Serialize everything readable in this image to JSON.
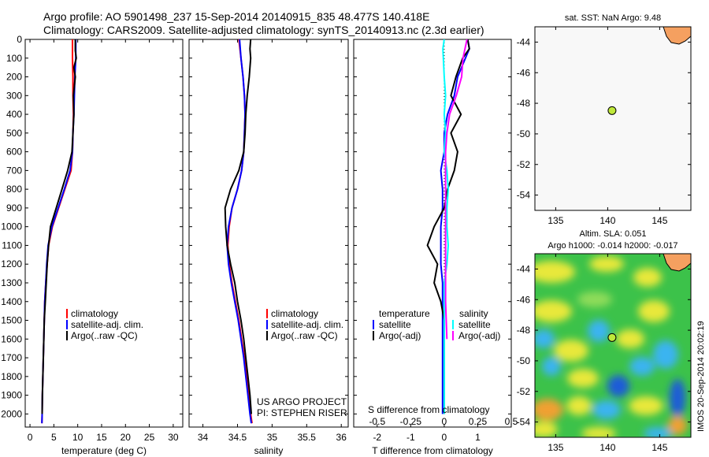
{
  "title": {
    "line1": "Argo profile: AO 5901498_237 15-Sep-2014 20140915_835 48.477S 140.418E",
    "line2": "Climatology: CARS2009. Satellite-adjusted climatology: synTS_20140913.nc (2.3d earlier)"
  },
  "panels": {
    "temperature": {
      "xlabel": "temperature (deg C)",
      "legend": [
        "climatology",
        "satellite-adj. clim.",
        "Argo(..raw -QC)"
      ]
    },
    "salinity": {
      "xlabel": "salinity",
      "legend": [
        "climatology",
        "satellite-adj. clim.",
        "Argo(..raw -QC)"
      ],
      "project_line1": "US ARGO PROJECT",
      "project_line2": "PI: STEPHEN RISER"
    },
    "difference": {
      "xlabel": "T difference from climatology",
      "top_axis_label": "S difference from climatology",
      "legend_temperature_title": "temperature",
      "legend_salinity_title": "salinity",
      "legend_temperature": [
        "satellite",
        "Argo(-adj)"
      ],
      "legend_salinity": [
        "satellite",
        "Argo(-adj)"
      ]
    },
    "sst_map": {
      "title": "sat. SST: NaN Argo: 9.48"
    },
    "sla_map": {
      "title1": "Altim. SLA: 0.051",
      "title2": "Argo h1000: -0.014 h2000: -0.017",
      "watermark": "IMOS 20-Sep-2014 20:02:19"
    }
  },
  "colors": {
    "climatology": "#ff0000",
    "satellite": "#0000ff",
    "argo": "#000000",
    "sal_satellite": "#00ffff",
    "sal_argo": "#ff00ff",
    "argo_marker": "#bfe83a",
    "land": "#f5a060",
    "map_background": "#f8f8f8"
  },
  "chart_data": [
    {
      "type": "line",
      "panel": "temperature",
      "xlabel": "temperature (deg C)",
      "ylabel": "",
      "xlim": [
        -1,
        32
      ],
      "ylim": [
        2070,
        0
      ],
      "y_inverted": true,
      "xticks": [
        0,
        5,
        10,
        15,
        20,
        25,
        30
      ],
      "yticks": [
        0,
        100,
        200,
        300,
        400,
        500,
        600,
        700,
        800,
        900,
        1000,
        1100,
        1200,
        1300,
        1400,
        1500,
        1600,
        1700,
        1800,
        1900,
        2000
      ],
      "series": [
        {
          "name": "climatology",
          "color": "#ff0000",
          "x": [
            8.9,
            8.9,
            9.0,
            9.0,
            9.1,
            9.0,
            8.9,
            8.6,
            7.3,
            6.0,
            4.7,
            3.9,
            3.6,
            3.3,
            3.1,
            3.0,
            2.9,
            2.8,
            2.7,
            2.6,
            2.55,
            2.5
          ],
          "y": [
            0,
            100,
            200,
            300,
            400,
            500,
            600,
            700,
            800,
            900,
            1000,
            1100,
            1200,
            1300,
            1400,
            1500,
            1600,
            1700,
            1800,
            1900,
            2000,
            2050
          ]
        },
        {
          "name": "satellite-adj. clim.",
          "color": "#0000ff",
          "x": [
            9.6,
            9.6,
            9.4,
            9.3,
            9.2,
            9.0,
            8.9,
            8.4,
            7.2,
            5.9,
            4.6,
            3.8,
            3.5,
            3.3,
            3.1,
            3.0,
            2.9,
            2.8,
            2.7,
            2.6,
            2.55,
            2.5
          ],
          "y": [
            0,
            100,
            200,
            300,
            400,
            500,
            600,
            700,
            800,
            900,
            1000,
            1100,
            1200,
            1300,
            1400,
            1500,
            1600,
            1700,
            1800,
            1900,
            2000,
            2050
          ]
        },
        {
          "name": "Argo(..raw -QC)",
          "color": "#000000",
          "x": [
            9.5,
            9.5,
            9.7,
            9.2,
            9.5,
            9.1,
            9.2,
            9.0,
            8.8,
            7.9,
            6.7,
            5.5,
            4.3,
            3.9,
            3.6,
            3.4,
            3.2,
            3.0,
            2.9,
            2.8,
            2.7,
            2.6,
            2.55
          ],
          "y": [
            0,
            60,
            100,
            150,
            200,
            300,
            400,
            500,
            600,
            700,
            800,
            900,
            1000,
            1100,
            1200,
            1300,
            1400,
            1500,
            1600,
            1700,
            1800,
            1900,
            2000
          ]
        }
      ]
    },
    {
      "type": "line",
      "panel": "salinity",
      "xlabel": "salinity",
      "ylabel": "",
      "xlim": [
        33.8,
        36.1
      ],
      "ylim": [
        2070,
        0
      ],
      "y_inverted": true,
      "xticks": [
        34,
        34.5,
        35,
        35.5,
        36
      ],
      "series": [
        {
          "name": "climatology",
          "color": "#ff0000",
          "x": [
            34.52,
            34.55,
            34.58,
            34.6,
            34.61,
            34.6,
            34.59,
            34.56,
            34.5,
            34.42,
            34.38,
            34.36,
            34.38,
            34.42,
            34.47,
            34.52,
            34.56,
            34.6,
            34.63,
            34.66,
            34.69,
            34.71
          ],
          "y": [
            0,
            100,
            200,
            300,
            400,
            500,
            600,
            700,
            800,
            900,
            1000,
            1100,
            1200,
            1300,
            1400,
            1500,
            1600,
            1700,
            1800,
            1900,
            2000,
            2050
          ]
        },
        {
          "name": "satellite-adj. clim.",
          "color": "#0000ff",
          "x": [
            34.53,
            34.55,
            34.58,
            34.6,
            34.61,
            34.6,
            34.59,
            34.56,
            34.5,
            34.42,
            34.37,
            34.35,
            34.37,
            34.41,
            34.46,
            34.51,
            34.55,
            34.59,
            34.62,
            34.65,
            34.68,
            34.7
          ],
          "y": [
            0,
            100,
            200,
            300,
            400,
            500,
            600,
            700,
            800,
            900,
            1000,
            1100,
            1200,
            1300,
            1400,
            1500,
            1600,
            1700,
            1800,
            1900,
            2000,
            2050
          ]
        },
        {
          "name": "Argo(..raw -QC)",
          "color": "#000000",
          "x": [
            34.69,
            34.68,
            34.69,
            34.67,
            34.64,
            34.62,
            34.61,
            34.59,
            34.52,
            34.4,
            34.32,
            34.33,
            34.35,
            34.4,
            34.46,
            34.5,
            34.55,
            34.59,
            34.62,
            34.65,
            34.68,
            34.7
          ],
          "y": [
            0,
            50,
            100,
            200,
            300,
            400,
            500,
            600,
            700,
            800,
            900,
            1000,
            1100,
            1200,
            1300,
            1400,
            1500,
            1600,
            1700,
            1800,
            1900,
            2000
          ]
        }
      ]
    },
    {
      "type": "line",
      "panel": "difference",
      "xlabel": "T difference from climatology",
      "top_axis_label": "S difference from climatology",
      "xlim": [
        -2.7,
        2.0
      ],
      "ylim": [
        2070,
        0
      ],
      "y_inverted": true,
      "xticks": [
        -2,
        -1,
        0,
        1
      ],
      "top_xlim": [
        -0.675,
        0.5
      ],
      "top_xticks": [
        -0.5,
        -0.25,
        0,
        0.25,
        0.5
      ],
      "series": [
        {
          "name": "temperature satellite",
          "color": "#0000ff",
          "x": [
            0.7,
            0.75,
            0.4,
            0.3,
            0.1,
            0.0,
            0.0,
            -0.1,
            -0.05,
            -0.05,
            -0.1,
            -0.1,
            -0.1,
            -0.05,
            -0.05,
            -0.05,
            -0.05,
            -0.05,
            -0.05,
            -0.05,
            -0.05
          ],
          "y": [
            0,
            50,
            200,
            300,
            400,
            500,
            600,
            700,
            800,
            900,
            1000,
            1100,
            1200,
            1300,
            1400,
            1500,
            1600,
            1700,
            1800,
            1900,
            2000
          ]
        },
        {
          "name": "temperature Argo(-adj)",
          "color": "#000000",
          "x": [
            0.7,
            0.75,
            0.55,
            0.35,
            0.2,
            0.5,
            0.2,
            0.4,
            0.3,
            0.1,
            0.0,
            -0.3,
            -0.5,
            -0.2,
            -0.3,
            -0.1,
            0.0,
            0.0,
            0.0,
            0.0,
            0.0,
            0.0
          ],
          "y": [
            0,
            50,
            100,
            200,
            300,
            400,
            500,
            600,
            700,
            800,
            900,
            1000,
            1100,
            1200,
            1300,
            1400,
            1500,
            1600,
            1700,
            1800,
            1900,
            2000
          ]
        },
        {
          "name": "salinity satellite",
          "color": "#00ffff",
          "x": [
            0.0,
            -0.01,
            0.0,
            0.01,
            0.0,
            0.01,
            0.0,
            0.02,
            0.03,
            0.02,
            0.02,
            0.03,
            0.02,
            0.0,
            0.0,
            0.0,
            0.0,
            0.0,
            0.0,
            0.0,
            0.0
          ],
          "y": [
            0,
            50,
            200,
            300,
            400,
            500,
            600,
            700,
            800,
            900,
            1000,
            1100,
            1200,
            1300,
            1400,
            1500,
            1600,
            1700,
            1800,
            1900,
            2000
          ]
        },
        {
          "name": "salinity Argo(-adj)",
          "color": "#ff00ff",
          "x": [
            0.17,
            0.14,
            0.13,
            0.09,
            0.04,
            0.02,
            0.01,
            0.01,
            0.02
          ],
          "y": [
            0,
            100,
            200,
            300,
            400,
            500,
            600,
            1400,
            1600
          ]
        }
      ]
    },
    {
      "type": "scatter",
      "panel": "sst_map",
      "title": "sat. SST: NaN Argo: 9.48",
      "xlim": [
        133,
        148
      ],
      "ylim": [
        -55,
        -43
      ],
      "xticks": [
        135,
        140,
        145
      ],
      "yticks": [
        -44,
        -46,
        -48,
        -50,
        -52,
        -54
      ],
      "points": [
        {
          "x": 140.418,
          "y": -48.477
        }
      ]
    },
    {
      "type": "heatmap",
      "panel": "sla_map",
      "title1": "Altim. SLA: 0.051",
      "title2": "Argo h1000: -0.014 h2000: -0.017",
      "xlim": [
        133,
        148
      ],
      "ylim": [
        -55,
        -43
      ],
      "xticks": [
        135,
        140,
        145
      ],
      "yticks": [
        -44,
        -46,
        -48,
        -50,
        -52,
        -54
      ],
      "points": [
        {
          "x": 140.418,
          "y": -48.477
        }
      ]
    }
  ]
}
